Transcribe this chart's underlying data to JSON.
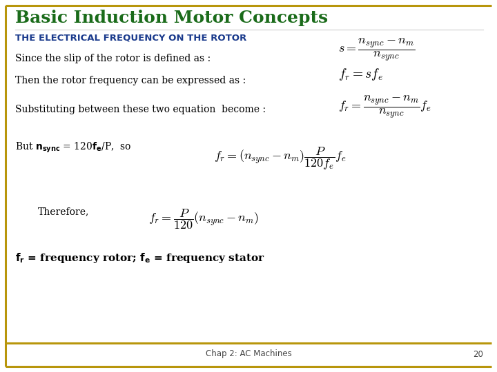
{
  "title": "Basic Induction Motor Concepts",
  "title_color": "#1a6b1a",
  "title_fontsize": 18,
  "subtitle": "THE ELECTRICAL FREQUENCY ON THE ROTOR",
  "subtitle_color": "#1a3a8c",
  "subtitle_fontsize": 9.5,
  "border_color": "#b8960c",
  "background_color": "#ffffff",
  "footer_text": "Chap 2: AC Machines",
  "footer_number": "20",
  "body_text_color": "#000000",
  "body_fontsize": 10,
  "line1_text": "Since the slip of the rotor is defined as :",
  "line2_text": "Then the rotor frequency can be expressed as :",
  "line3_text": "Substituting between these two equation  become :",
  "line4_text": "But $\\mathbf{n_{sync}}$ = 120$\\mathbf{f_e}$/P,  so",
  "line5_text": "Therefore,",
  "line6_text": "$\\mathbf{f_r}$ = frequency rotor; $\\mathbf{f_e}$ = frequency stator",
  "eq1": "$s = \\dfrac{n_{sync} - n_m}{n_{sync}}$",
  "eq2": "$f_r = sf_e$",
  "eq3": "$f_r = \\dfrac{n_{sync} - n_m}{n_{sync}} f_e$",
  "eq4": "$f_r = (n_{sync} - n_m)\\dfrac{P}{120f_e} f_e$",
  "eq5": "$f_r = \\dfrac{P}{120}(n_{sync} - n_m)$",
  "eq_fontsize": 13
}
